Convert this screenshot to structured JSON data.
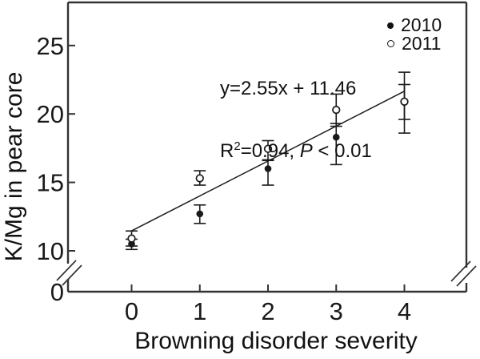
{
  "colors": {
    "foreground": "#1a1a1a",
    "axis": "#333333",
    "background": "#ffffff"
  },
  "legend": [
    {
      "label": "2010",
      "marker": "filled-circle"
    },
    {
      "label": "2011",
      "marker": "open-circle"
    }
  ],
  "annotation": {
    "line1": "y=2.55x + 11.46",
    "r_label": "R",
    "r_sup": "2",
    "r_value": "=0.94, ",
    "p_label": "P",
    "p_value": " < 0.01"
  },
  "chart_data": {
    "type": "scatter",
    "title": "",
    "xlabel": "Browning disorder severity",
    "ylabel": "K/Mg in pear core",
    "x_ticks": [
      0,
      1,
      2,
      3,
      4
    ],
    "y_ticks": [
      0,
      10,
      15,
      20,
      25
    ],
    "xlim": [
      -0.9,
      4.9
    ],
    "ylim_displayed": [
      10,
      28
    ],
    "y_axis_break_between": [
      0,
      10
    ],
    "grid": false,
    "legend_position": "top-right",
    "series": [
      {
        "name": "2010",
        "marker": "filled-circle",
        "x": [
          0,
          1,
          2,
          3,
          4
        ],
        "y": [
          10.5,
          12.7,
          16.0,
          18.3,
          20.85
        ],
        "err_low": [
          0.4,
          0.7,
          1.2,
          2.0,
          2.25
        ],
        "err_high": [
          0.35,
          0.65,
          0.65,
          1.0,
          2.2
        ]
      },
      {
        "name": "2011",
        "marker": "open-circle",
        "x": [
          0,
          1,
          2,
          3,
          4
        ],
        "y": [
          10.9,
          15.3,
          17.45,
          20.3,
          20.9
        ],
        "err_low": [
          0.55,
          0.5,
          0.85,
          1.2,
          1.3
        ],
        "err_high": [
          0.55,
          0.55,
          0.6,
          1.15,
          1.25
        ]
      }
    ],
    "regression": {
      "equation": "y=2.55x + 11.46",
      "slope": 2.55,
      "intercept": 11.46,
      "r2": 0.94,
      "p": "P < 0.01",
      "x_range": [
        0,
        4
      ]
    }
  }
}
